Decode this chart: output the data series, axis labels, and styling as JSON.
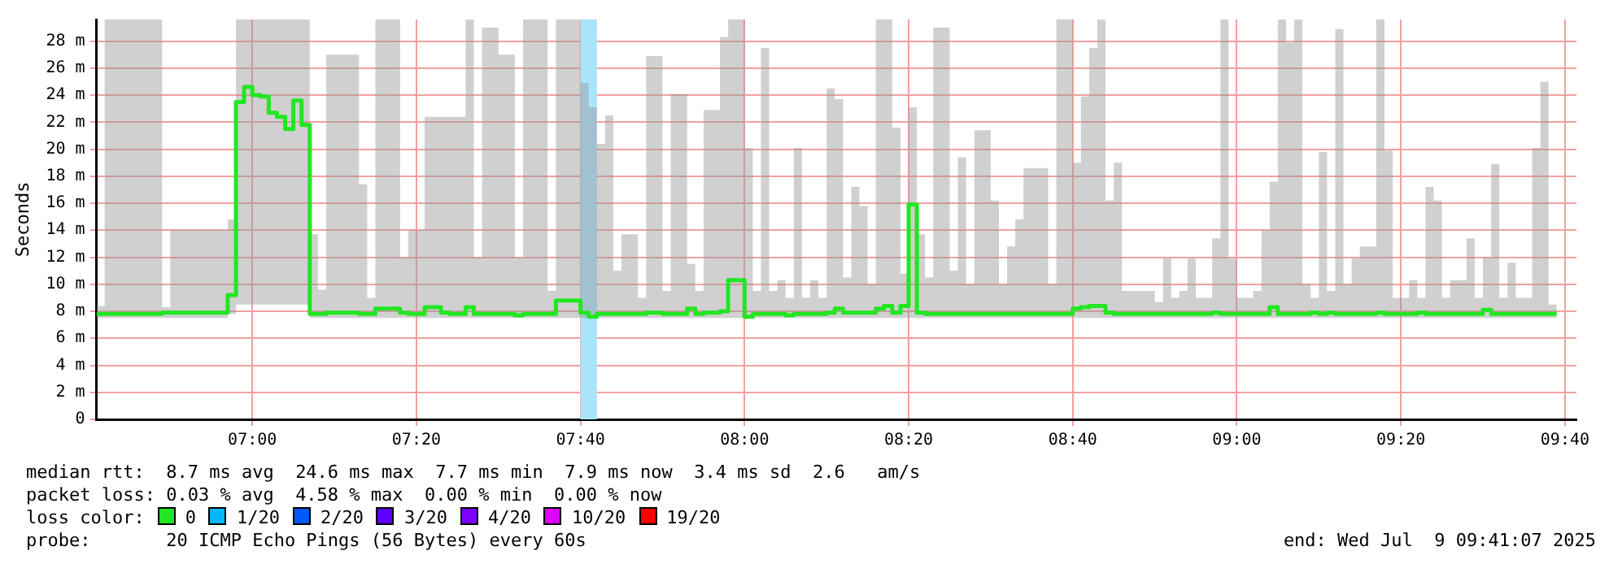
{
  "chart_data": {
    "type": "step",
    "ylabel": "Seconds",
    "marker": "none",
    "grid": true,
    "legend": false,
    "xlim": [
      6.6833,
      9.69
    ],
    "xticks": [
      {
        "value": 7,
        "label": "07:00"
      },
      {
        "value": 7.3333,
        "label": "07:20"
      },
      {
        "value": 7.6667,
        "label": "07:40"
      },
      {
        "value": 8,
        "label": "08:00"
      },
      {
        "value": 8.3333,
        "label": "08:20"
      },
      {
        "value": 8.6667,
        "label": "08:40"
      },
      {
        "value": 9,
        "label": "09:00"
      },
      {
        "value": 9.3333,
        "label": "09:20"
      },
      {
        "value": 9.6667,
        "label": "09:40"
      }
    ],
    "ylim": [
      0,
      29.6
    ],
    "yticks": [
      0,
      {
        "value": 2,
        "label": "2 m"
      },
      {
        "value": 4,
        "label": "4 m"
      },
      {
        "value": 6,
        "label": "6 m"
      },
      {
        "value": 8,
        "label": "8 m"
      },
      {
        "value": 10,
        "label": "10 m"
      },
      {
        "value": 12,
        "label": "12 m"
      },
      {
        "value": 14,
        "label": "14 m"
      },
      {
        "value": 16,
        "label": "16 m"
      },
      {
        "value": 18,
        "label": "18 m"
      },
      {
        "value": 20,
        "label": "20 m"
      },
      {
        "value": 22,
        "label": "22 m"
      },
      {
        "value": 24,
        "label": "24 m"
      },
      {
        "value": 26,
        "label": "26 m"
      },
      {
        "value": 28,
        "label": "28 m"
      }
    ],
    "bands": [
      {
        "axis": "x",
        "from": 7.6667,
        "to": 7.7,
        "color": "#aae4fb"
      }
    ],
    "x": [
      6.6833,
      6.7,
      6.8167,
      6.8333,
      6.95,
      6.9667,
      6.9833,
      7,
      7.0167,
      7.0333,
      7.05,
      7.0667,
      7.0833,
      7.1,
      7.1167,
      7.1333,
      7.15,
      7.2167,
      7.2333,
      7.25,
      7.3,
      7.3167,
      7.35,
      7.3833,
      7.4,
      7.4333,
      7.45,
      7.4667,
      7.5,
      7.5333,
      7.55,
      7.6,
      7.6167,
      7.6667,
      7.6833,
      7.7,
      7.7167,
      7.7333,
      7.75,
      7.7833,
      7.8,
      7.8333,
      7.85,
      7.8833,
      7.9,
      7.9167,
      7.95,
      7.9667,
      8,
      8.0167,
      8.0333,
      8.05,
      8.0667,
      8.0833,
      8.1,
      8.1167,
      8.1333,
      8.15,
      8.1667,
      8.1833,
      8.2,
      8.2167,
      8.2333,
      8.25,
      8.2667,
      8.2833,
      8.3,
      8.3167,
      8.3333,
      8.35,
      8.3667,
      8.3833,
      8.4167,
      8.4333,
      8.45,
      8.4667,
      8.5,
      8.5167,
      8.5333,
      8.55,
      8.5667,
      8.6,
      8.6167,
      8.6333,
      8.65,
      8.6667,
      8.6833,
      8.7,
      8.7167,
      8.7333,
      8.75,
      8.7667,
      8.8333,
      8.85,
      8.8667,
      8.8833,
      8.9,
      8.9167,
      8.95,
      8.9667,
      8.9833,
      9,
      9.0333,
      9.05,
      9.0667,
      9.0833,
      9.1,
      9.1167,
      9.1333,
      9.15,
      9.1667,
      9.1833,
      9.2,
      9.2167,
      9.2333,
      9.25,
      9.2833,
      9.3,
      9.3167,
      9.35,
      9.3667,
      9.3833,
      9.4,
      9.4167,
      9.4333,
      9.4667,
      9.4833,
      9.5,
      9.5167,
      9.5333,
      9.55,
      9.5667,
      9.6,
      9.6167,
      9.6333,
      9.65
    ],
    "series": [
      {
        "color": "#22e622",
        "values": [
          7.8,
          7.8,
          7.8,
          7.9,
          7.9,
          9.2,
          23.5,
          24.6,
          24,
          23.9,
          22.7,
          22.4,
          21.5,
          23.6,
          21.8,
          7.8,
          7.8,
          7.9,
          7.8,
          7.8,
          8.2,
          7.9,
          7.8,
          8.3,
          7.9,
          7.8,
          8.3,
          7.8,
          7.8,
          7.8,
          7.7,
          7.8,
          7.8,
          8.8,
          7.9,
          7.6,
          7.8,
          7.8,
          7.8,
          7.8,
          7.8,
          7.9,
          7.8,
          7.8,
          8.2,
          7.8,
          7.9,
          8,
          10.3,
          7.6,
          7.8,
          7.8,
          7.8,
          7.8,
          7.7,
          7.8,
          7.8,
          7.8,
          7.8,
          7.9,
          8.2,
          7.9,
          7.9,
          7.9,
          7.9,
          8.2,
          8.4,
          7.9,
          8.4,
          15.9,
          7.9,
          7.8,
          7.8,
          7.8,
          7.8,
          7.8,
          7.8,
          7.8,
          7.8,
          7.8,
          7.8,
          7.8,
          7.8,
          7.8,
          7.8,
          7.8,
          8.2,
          8.3,
          8.4,
          8.4,
          7.9,
          7.8,
          7.8,
          7.8,
          7.8,
          7.8,
          7.8,
          7.8,
          7.8,
          7.9,
          7.8,
          7.8,
          7.8,
          7.8,
          7.8,
          8.3,
          7.8,
          7.8,
          7.8,
          7.8,
          7.9,
          7.8,
          7.9,
          7.8,
          7.8,
          7.8,
          7.8,
          7.9,
          7.8,
          7.8,
          7.8,
          7.9,
          7.8,
          7.8,
          7.8,
          7.8,
          7.8,
          7.8,
          8.1,
          7.8,
          7.8,
          7.8,
          7.8,
          7.8,
          7.8,
          7.8
        ],
        "lower": [
          7.5,
          7.5,
          7.5,
          7.5,
          7.5,
          7.8,
          8.5,
          8.5,
          8.5,
          8.5,
          8.5,
          8.5,
          8.5,
          8.5,
          8.5,
          7.5,
          7.5,
          7.5,
          7.5,
          7.5,
          7.5,
          7.5,
          7.5,
          7.5,
          7.5,
          7.5,
          7.5,
          7.5,
          7.5,
          7.5,
          7.5,
          7.5,
          7.5,
          7.5,
          7.5,
          7.5,
          7.5,
          7.5,
          7.5,
          7.5,
          7.5,
          7.5,
          7.5,
          7.5,
          7.5,
          7.5,
          7.5,
          7.5,
          7.5,
          7.5,
          7.5,
          7.5,
          7.5,
          7.5,
          7.5,
          7.5,
          7.5,
          7.5,
          7.5,
          7.5,
          7.5,
          7.5,
          7.5,
          7.5,
          7.5,
          7.5,
          7.5,
          7.5,
          7.5,
          7.5,
          7.5,
          7.5,
          7.5,
          7.5,
          7.5,
          7.5,
          7.5,
          7.5,
          7.5,
          7.5,
          7.5,
          7.5,
          7.5,
          7.5,
          7.5,
          7.5,
          7.5,
          7.5,
          7.5,
          7.5,
          7.5,
          7.5,
          7.5,
          7.5,
          7.5,
          7.5,
          7.5,
          7.5,
          7.5,
          7.5,
          7.5,
          7.5,
          7.5,
          7.5,
          7.5,
          7.5,
          7.5,
          7.5,
          7.5,
          7.5,
          7.5,
          7.5,
          7.5,
          7.5,
          7.5,
          7.5,
          7.5,
          7.5,
          7.5,
          7.5,
          7.5,
          7.5,
          7.5,
          7.5,
          7.5,
          7.5,
          7.5,
          7.5,
          7.5,
          7.5,
          7.5,
          7.5,
          7.5,
          7.5,
          7.5,
          7.5
        ],
        "upper": [
          10.5,
          8.4,
          29.6,
          8.3,
          14,
          14.8,
          29.6,
          29.6,
          29.6,
          29.6,
          29.6,
          29.6,
          29.6,
          29.6,
          29.6,
          13.7,
          9.6,
          27,
          17.4,
          9,
          29.6,
          12,
          14,
          22.4,
          22.4,
          22.4,
          29.6,
          12,
          29,
          27,
          12,
          29.6,
          9.5,
          29.6,
          24.9,
          23.1,
          20.4,
          22.5,
          11,
          13.7,
          9,
          26.9,
          9.5,
          24.1,
          11.5,
          9.5,
          22.9,
          28.3,
          29.6,
          20.1,
          9.5,
          27.5,
          9.5,
          10.3,
          9,
          20.1,
          9,
          10.3,
          9,
          24.5,
          23.7,
          10.5,
          17.2,
          15.8,
          10,
          29.6,
          29.6,
          21.6,
          10.8,
          23.1,
          13.7,
          10.5,
          29,
          11,
          19.4,
          10,
          21.4,
          16.2,
          10,
          12.8,
          14.8,
          18.6,
          18.6,
          10,
          29.6,
          29.6,
          19,
          23.9,
          27.5,
          29.6,
          16.2,
          19,
          9.5,
          8.7,
          11.9,
          9,
          9.5,
          11.9,
          9,
          13.4,
          29.6,
          11.9,
          9,
          9.5,
          14,
          17.6,
          29.6,
          27.9,
          29.6,
          10,
          9,
          19.8,
          9.5,
          28.9,
          10,
          11.9,
          12.8,
          29.6,
          19.9,
          9,
          10.3,
          9,
          17.2,
          16.2,
          9,
          10.3,
          13.4,
          9,
          12,
          18.9,
          9,
          11.6,
          9,
          20.1,
          25,
          8.5
        ]
      }
    ],
    "annotations": [
      "median rtt:  8.7 ms avg  24.6 ms max  7.7 ms min  7.9 ms now  3.4 ms sd  2.6   am/s",
      "packet loss: 0.03 % avg  4.58 % max  0.00 % min  0.00 % now",
      "loss color:",
      "0",
      "1/20",
      "2/20",
      "3/20",
      "4/20",
      "10/20",
      "19/20",
      "probe:       20 ICMP Echo Pings (56 Bytes) every 60s",
      "end: Wed Jul  9 09:41:07 2025"
    ]
  }
}
